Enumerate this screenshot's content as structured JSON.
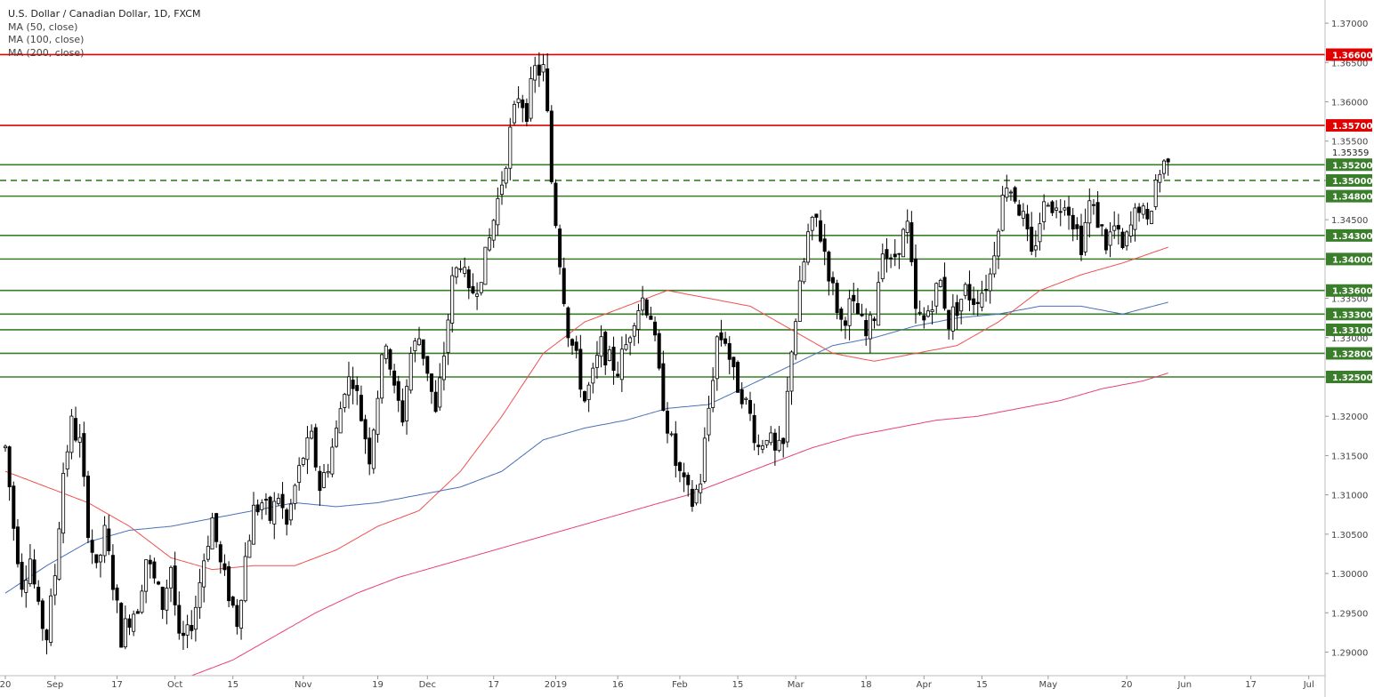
{
  "legend": {
    "title": "U.S. Dollar / Canadian Dollar, 1D, FXCM",
    "ma50": "MA (50, close)",
    "ma100": "MA (100, close)",
    "ma200": "MA (200, close)"
  },
  "colors": {
    "background": "#ffffff",
    "candle_up": "#ffffff",
    "candle_down": "#000000",
    "candle_outline": "#000000",
    "resistance_line": "#e00000",
    "support_line": "#3a7d2a",
    "ma50": "#f05050",
    "ma100": "#4a70b8",
    "ma200": "#e8407a",
    "axis_text": "#444444",
    "label_text": "#ffffff"
  },
  "chart_data": {
    "type": "candlestick",
    "symbol": "USD/CAD",
    "timeframe": "1D",
    "y_range": [
      1.287,
      1.3725
    ],
    "y_ticks": [
      "1.37000",
      "1.36500",
      "1.36000",
      "1.35500",
      "1.35000",
      "1.34500",
      "1.34000",
      "1.33500",
      "1.33000",
      "1.32500",
      "1.32000",
      "1.31500",
      "1.31000",
      "1.30500",
      "1.30000",
      "1.29500",
      "1.29000"
    ],
    "x_ticks": [
      {
        "label": "20",
        "day": 0
      },
      {
        "label": "Sep",
        "day": 12
      },
      {
        "label": "17",
        "day": 27
      },
      {
        "label": "Oct",
        "day": 41
      },
      {
        "label": "15",
        "day": 55
      },
      {
        "label": "Nov",
        "day": 72
      },
      {
        "label": "19",
        "day": 90
      },
      {
        "label": "Dec",
        "day": 102
      },
      {
        "label": "17",
        "day": 118
      },
      {
        "label": "2019",
        "day": 133
      },
      {
        "label": "16",
        "day": 148
      },
      {
        "label": "Feb",
        "day": 163
      },
      {
        "label": "15",
        "day": 177
      },
      {
        "label": "Mar",
        "day": 191
      },
      {
        "label": "18",
        "day": 208
      },
      {
        "label": "Apr",
        "day": 222
      },
      {
        "label": "15",
        "day": 236
      },
      {
        "label": "May",
        "day": 252
      },
      {
        "label": "20",
        "day": 271
      },
      {
        "label": "Jun",
        "day": 285
      },
      {
        "label": "17",
        "day": 301
      },
      {
        "label": "Jul",
        "day": 315
      }
    ],
    "horizontal_levels": [
      {
        "value": 1.366,
        "label": "1.36600",
        "color": "#e00000",
        "style": "solid"
      },
      {
        "value": 1.357,
        "label": "1.35700",
        "color": "#e00000",
        "style": "solid"
      },
      {
        "value": 1.352,
        "label": "1.35200",
        "color": "#3a7d2a",
        "style": "solid"
      },
      {
        "value": 1.35,
        "label": "1.35000",
        "color": "#3a7d2a",
        "style": "dashed"
      },
      {
        "value": 1.348,
        "label": "1.34800",
        "color": "#3a7d2a",
        "style": "solid"
      },
      {
        "value": 1.343,
        "label": "1.34300",
        "color": "#3a7d2a",
        "style": "solid"
      },
      {
        "value": 1.34,
        "label": "1.34000",
        "color": "#3a7d2a",
        "style": "solid"
      },
      {
        "value": 1.336,
        "label": "1.33600",
        "color": "#3a7d2a",
        "style": "solid"
      },
      {
        "value": 1.333,
        "label": "1.33300",
        "color": "#3a7d2a",
        "style": "solid"
      },
      {
        "value": 1.331,
        "label": "1.33100",
        "color": "#3a7d2a",
        "style": "solid"
      },
      {
        "value": 1.328,
        "label": "1.32800",
        "color": "#3a7d2a",
        "style": "solid"
      },
      {
        "value": 1.325,
        "label": "1.32500",
        "color": "#3a7d2a",
        "style": "solid"
      }
    ],
    "current_price": {
      "value": 1.35359,
      "label": "1.35359"
    },
    "price_path": [
      {
        "day": 0,
        "p": 1.316
      },
      {
        "day": 2,
        "p": 1.306
      },
      {
        "day": 4,
        "p": 1.299
      },
      {
        "day": 6,
        "p": 1.302
      },
      {
        "day": 8,
        "p": 1.295
      },
      {
        "day": 10,
        "p": 1.292
      },
      {
        "day": 12,
        "p": 1.3
      },
      {
        "day": 14,
        "p": 1.313
      },
      {
        "day": 16,
        "p": 1.319
      },
      {
        "day": 18,
        "p": 1.3165
      },
      {
        "day": 20,
        "p": 1.306
      },
      {
        "day": 22,
        "p": 1.3
      },
      {
        "day": 24,
        "p": 1.305
      },
      {
        "day": 26,
        "p": 1.299
      },
      {
        "day": 28,
        "p": 1.292
      },
      {
        "day": 30,
        "p": 1.2945
      },
      {
        "day": 32,
        "p": 1.296
      },
      {
        "day": 34,
        "p": 1.302
      },
      {
        "day": 36,
        "p": 1.299
      },
      {
        "day": 38,
        "p": 1.296
      },
      {
        "day": 40,
        "p": 1.301
      },
      {
        "day": 42,
        "p": 1.291
      },
      {
        "day": 44,
        "p": 1.292
      },
      {
        "day": 46,
        "p": 1.296
      },
      {
        "day": 48,
        "p": 1.302
      },
      {
        "day": 50,
        "p": 1.307
      },
      {
        "day": 52,
        "p": 1.301
      },
      {
        "day": 54,
        "p": 1.2975
      },
      {
        "day": 56,
        "p": 1.294
      },
      {
        "day": 58,
        "p": 1.302
      },
      {
        "day": 60,
        "p": 1.308
      },
      {
        "day": 62,
        "p": 1.309
      },
      {
        "day": 64,
        "p": 1.307
      },
      {
        "day": 66,
        "p": 1.31
      },
      {
        "day": 68,
        "p": 1.306
      },
      {
        "day": 70,
        "p": 1.311
      },
      {
        "day": 72,
        "p": 1.315
      },
      {
        "day": 74,
        "p": 1.317
      },
      {
        "day": 76,
        "p": 1.311
      },
      {
        "day": 78,
        "p": 1.314
      },
      {
        "day": 80,
        "p": 1.318
      },
      {
        "day": 82,
        "p": 1.324
      },
      {
        "day": 84,
        "p": 1.325
      },
      {
        "day": 86,
        "p": 1.32
      },
      {
        "day": 88,
        "p": 1.315
      },
      {
        "day": 90,
        "p": 1.323
      },
      {
        "day": 92,
        "p": 1.33
      },
      {
        "day": 94,
        "p": 1.323
      },
      {
        "day": 96,
        "p": 1.32
      },
      {
        "day": 98,
        "p": 1.328
      },
      {
        "day": 100,
        "p": 1.33
      },
      {
        "day": 102,
        "p": 1.326
      },
      {
        "day": 104,
        "p": 1.32
      },
      {
        "day": 106,
        "p": 1.328
      },
      {
        "day": 108,
        "p": 1.337
      },
      {
        "day": 110,
        "p": 1.34
      },
      {
        "day": 112,
        "p": 1.335
      },
      {
        "day": 114,
        "p": 1.337
      },
      {
        "day": 116,
        "p": 1.34
      },
      {
        "day": 118,
        "p": 1.345
      },
      {
        "day": 120,
        "p": 1.35
      },
      {
        "day": 122,
        "p": 1.356
      },
      {
        "day": 124,
        "p": 1.361
      },
      {
        "day": 126,
        "p": 1.359
      },
      {
        "day": 128,
        "p": 1.364
      },
      {
        "day": 130,
        "p": 1.364
      },
      {
        "day": 131,
        "p": 1.358
      },
      {
        "day": 132,
        "p": 1.35
      },
      {
        "day": 134,
        "p": 1.34
      },
      {
        "day": 136,
        "p": 1.331
      },
      {
        "day": 138,
        "p": 1.327
      },
      {
        "day": 140,
        "p": 1.322
      },
      {
        "day": 142,
        "p": 1.325
      },
      {
        "day": 144,
        "p": 1.329
      },
      {
        "day": 146,
        "p": 1.327
      },
      {
        "day": 148,
        "p": 1.326
      },
      {
        "day": 150,
        "p": 1.329
      },
      {
        "day": 152,
        "p": 1.333
      },
      {
        "day": 154,
        "p": 1.335
      },
      {
        "day": 156,
        "p": 1.333
      },
      {
        "day": 158,
        "p": 1.325
      },
      {
        "day": 160,
        "p": 1.319
      },
      {
        "day": 162,
        "p": 1.314
      },
      {
        "day": 164,
        "p": 1.311
      },
      {
        "day": 166,
        "p": 1.309
      },
      {
        "day": 168,
        "p": 1.312
      },
      {
        "day": 170,
        "p": 1.321
      },
      {
        "day": 172,
        "p": 1.33
      },
      {
        "day": 174,
        "p": 1.33
      },
      {
        "day": 176,
        "p": 1.325
      },
      {
        "day": 178,
        "p": 1.323
      },
      {
        "day": 180,
        "p": 1.32
      },
      {
        "day": 182,
        "p": 1.316
      },
      {
        "day": 184,
        "p": 1.318
      },
      {
        "day": 186,
        "p": 1.315
      },
      {
        "day": 188,
        "p": 1.316
      },
      {
        "day": 190,
        "p": 1.329
      },
      {
        "day": 192,
        "p": 1.336
      },
      {
        "day": 194,
        "p": 1.343
      },
      {
        "day": 196,
        "p": 1.345
      },
      {
        "day": 198,
        "p": 1.341
      },
      {
        "day": 200,
        "p": 1.336
      },
      {
        "day": 202,
        "p": 1.332
      },
      {
        "day": 204,
        "p": 1.334
      },
      {
        "day": 206,
        "p": 1.333
      },
      {
        "day": 208,
        "p": 1.33
      },
      {
        "day": 210,
        "p": 1.333
      },
      {
        "day": 212,
        "p": 1.342
      },
      {
        "day": 214,
        "p": 1.339
      },
      {
        "day": 216,
        "p": 1.342
      },
      {
        "day": 218,
        "p": 1.344
      },
      {
        "day": 220,
        "p": 1.333
      },
      {
        "day": 222,
        "p": 1.332
      },
      {
        "day": 224,
        "p": 1.335
      },
      {
        "day": 226,
        "p": 1.337
      },
      {
        "day": 228,
        "p": 1.332
      },
      {
        "day": 230,
        "p": 1.334
      },
      {
        "day": 232,
        "p": 1.336
      },
      {
        "day": 234,
        "p": 1.335
      },
      {
        "day": 236,
        "p": 1.336
      },
      {
        "day": 238,
        "p": 1.338
      },
      {
        "day": 240,
        "p": 1.345
      },
      {
        "day": 242,
        "p": 1.35
      },
      {
        "day": 244,
        "p": 1.348
      },
      {
        "day": 246,
        "p": 1.345
      },
      {
        "day": 248,
        "p": 1.34
      },
      {
        "day": 250,
        "p": 1.345
      },
      {
        "day": 252,
        "p": 1.348
      },
      {
        "day": 254,
        "p": 1.346
      },
      {
        "day": 256,
        "p": 1.348
      },
      {
        "day": 258,
        "p": 1.345
      },
      {
        "day": 260,
        "p": 1.342
      },
      {
        "day": 262,
        "p": 1.347
      },
      {
        "day": 264,
        "p": 1.345
      },
      {
        "day": 266,
        "p": 1.342
      },
      {
        "day": 268,
        "p": 1.344
      },
      {
        "day": 270,
        "p": 1.341
      },
      {
        "day": 272,
        "p": 1.344
      },
      {
        "day": 274,
        "p": 1.347
      },
      {
        "day": 276,
        "p": 1.344
      },
      {
        "day": 278,
        "p": 1.35
      },
      {
        "day": 280,
        "p": 1.352
      },
      {
        "day": 281,
        "p": 1.3536
      }
    ],
    "ma50": [
      {
        "day": 0,
        "p": 1.313
      },
      {
        "day": 10,
        "p": 1.311
      },
      {
        "day": 20,
        "p": 1.309
      },
      {
        "day": 30,
        "p": 1.306
      },
      {
        "day": 40,
        "p": 1.302
      },
      {
        "day": 50,
        "p": 1.3005
      },
      {
        "day": 60,
        "p": 1.301
      },
      {
        "day": 70,
        "p": 1.301
      },
      {
        "day": 80,
        "p": 1.303
      },
      {
        "day": 90,
        "p": 1.306
      },
      {
        "day": 100,
        "p": 1.308
      },
      {
        "day": 110,
        "p": 1.313
      },
      {
        "day": 120,
        "p": 1.32
      },
      {
        "day": 130,
        "p": 1.328
      },
      {
        "day": 140,
        "p": 1.332
      },
      {
        "day": 150,
        "p": 1.334
      },
      {
        "day": 160,
        "p": 1.336
      },
      {
        "day": 170,
        "p": 1.335
      },
      {
        "day": 180,
        "p": 1.334
      },
      {
        "day": 190,
        "p": 1.331
      },
      {
        "day": 200,
        "p": 1.328
      },
      {
        "day": 210,
        "p": 1.327
      },
      {
        "day": 220,
        "p": 1.328
      },
      {
        "day": 230,
        "p": 1.329
      },
      {
        "day": 240,
        "p": 1.332
      },
      {
        "day": 250,
        "p": 1.336
      },
      {
        "day": 260,
        "p": 1.338
      },
      {
        "day": 270,
        "p": 1.3395
      },
      {
        "day": 281,
        "p": 1.3415
      }
    ],
    "ma100": [
      {
        "day": 0,
        "p": 1.2975
      },
      {
        "day": 10,
        "p": 1.301
      },
      {
        "day": 20,
        "p": 1.304
      },
      {
        "day": 30,
        "p": 1.3055
      },
      {
        "day": 40,
        "p": 1.306
      },
      {
        "day": 50,
        "p": 1.307
      },
      {
        "day": 60,
        "p": 1.308
      },
      {
        "day": 70,
        "p": 1.309
      },
      {
        "day": 80,
        "p": 1.3085
      },
      {
        "day": 90,
        "p": 1.309
      },
      {
        "day": 100,
        "p": 1.31
      },
      {
        "day": 110,
        "p": 1.311
      },
      {
        "day": 120,
        "p": 1.313
      },
      {
        "day": 130,
        "p": 1.317
      },
      {
        "day": 140,
        "p": 1.3185
      },
      {
        "day": 150,
        "p": 1.3195
      },
      {
        "day": 160,
        "p": 1.321
      },
      {
        "day": 170,
        "p": 1.3215
      },
      {
        "day": 180,
        "p": 1.324
      },
      {
        "day": 190,
        "p": 1.3265
      },
      {
        "day": 200,
        "p": 1.329
      },
      {
        "day": 210,
        "p": 1.33
      },
      {
        "day": 220,
        "p": 1.3315
      },
      {
        "day": 230,
        "p": 1.3325
      },
      {
        "day": 240,
        "p": 1.333
      },
      {
        "day": 250,
        "p": 1.334
      },
      {
        "day": 260,
        "p": 1.334
      },
      {
        "day": 270,
        "p": 1.333
      },
      {
        "day": 281,
        "p": 1.3345
      }
    ],
    "ma200": [
      {
        "day": 45,
        "p": 1.287
      },
      {
        "day": 55,
        "p": 1.289
      },
      {
        "day": 65,
        "p": 1.292
      },
      {
        "day": 75,
        "p": 1.295
      },
      {
        "day": 85,
        "p": 1.2975
      },
      {
        "day": 95,
        "p": 1.2995
      },
      {
        "day": 105,
        "p": 1.301
      },
      {
        "day": 115,
        "p": 1.3025
      },
      {
        "day": 125,
        "p": 1.304
      },
      {
        "day": 135,
        "p": 1.3055
      },
      {
        "day": 145,
        "p": 1.307
      },
      {
        "day": 155,
        "p": 1.3085
      },
      {
        "day": 165,
        "p": 1.31
      },
      {
        "day": 175,
        "p": 1.312
      },
      {
        "day": 185,
        "p": 1.314
      },
      {
        "day": 195,
        "p": 1.316
      },
      {
        "day": 205,
        "p": 1.3175
      },
      {
        "day": 215,
        "p": 1.3185
      },
      {
        "day": 225,
        "p": 1.3195
      },
      {
        "day": 235,
        "p": 1.32
      },
      {
        "day": 245,
        "p": 1.321
      },
      {
        "day": 255,
        "p": 1.322
      },
      {
        "day": 265,
        "p": 1.3235
      },
      {
        "day": 275,
        "p": 1.3245
      },
      {
        "day": 281,
        "p": 1.3255
      }
    ]
  }
}
